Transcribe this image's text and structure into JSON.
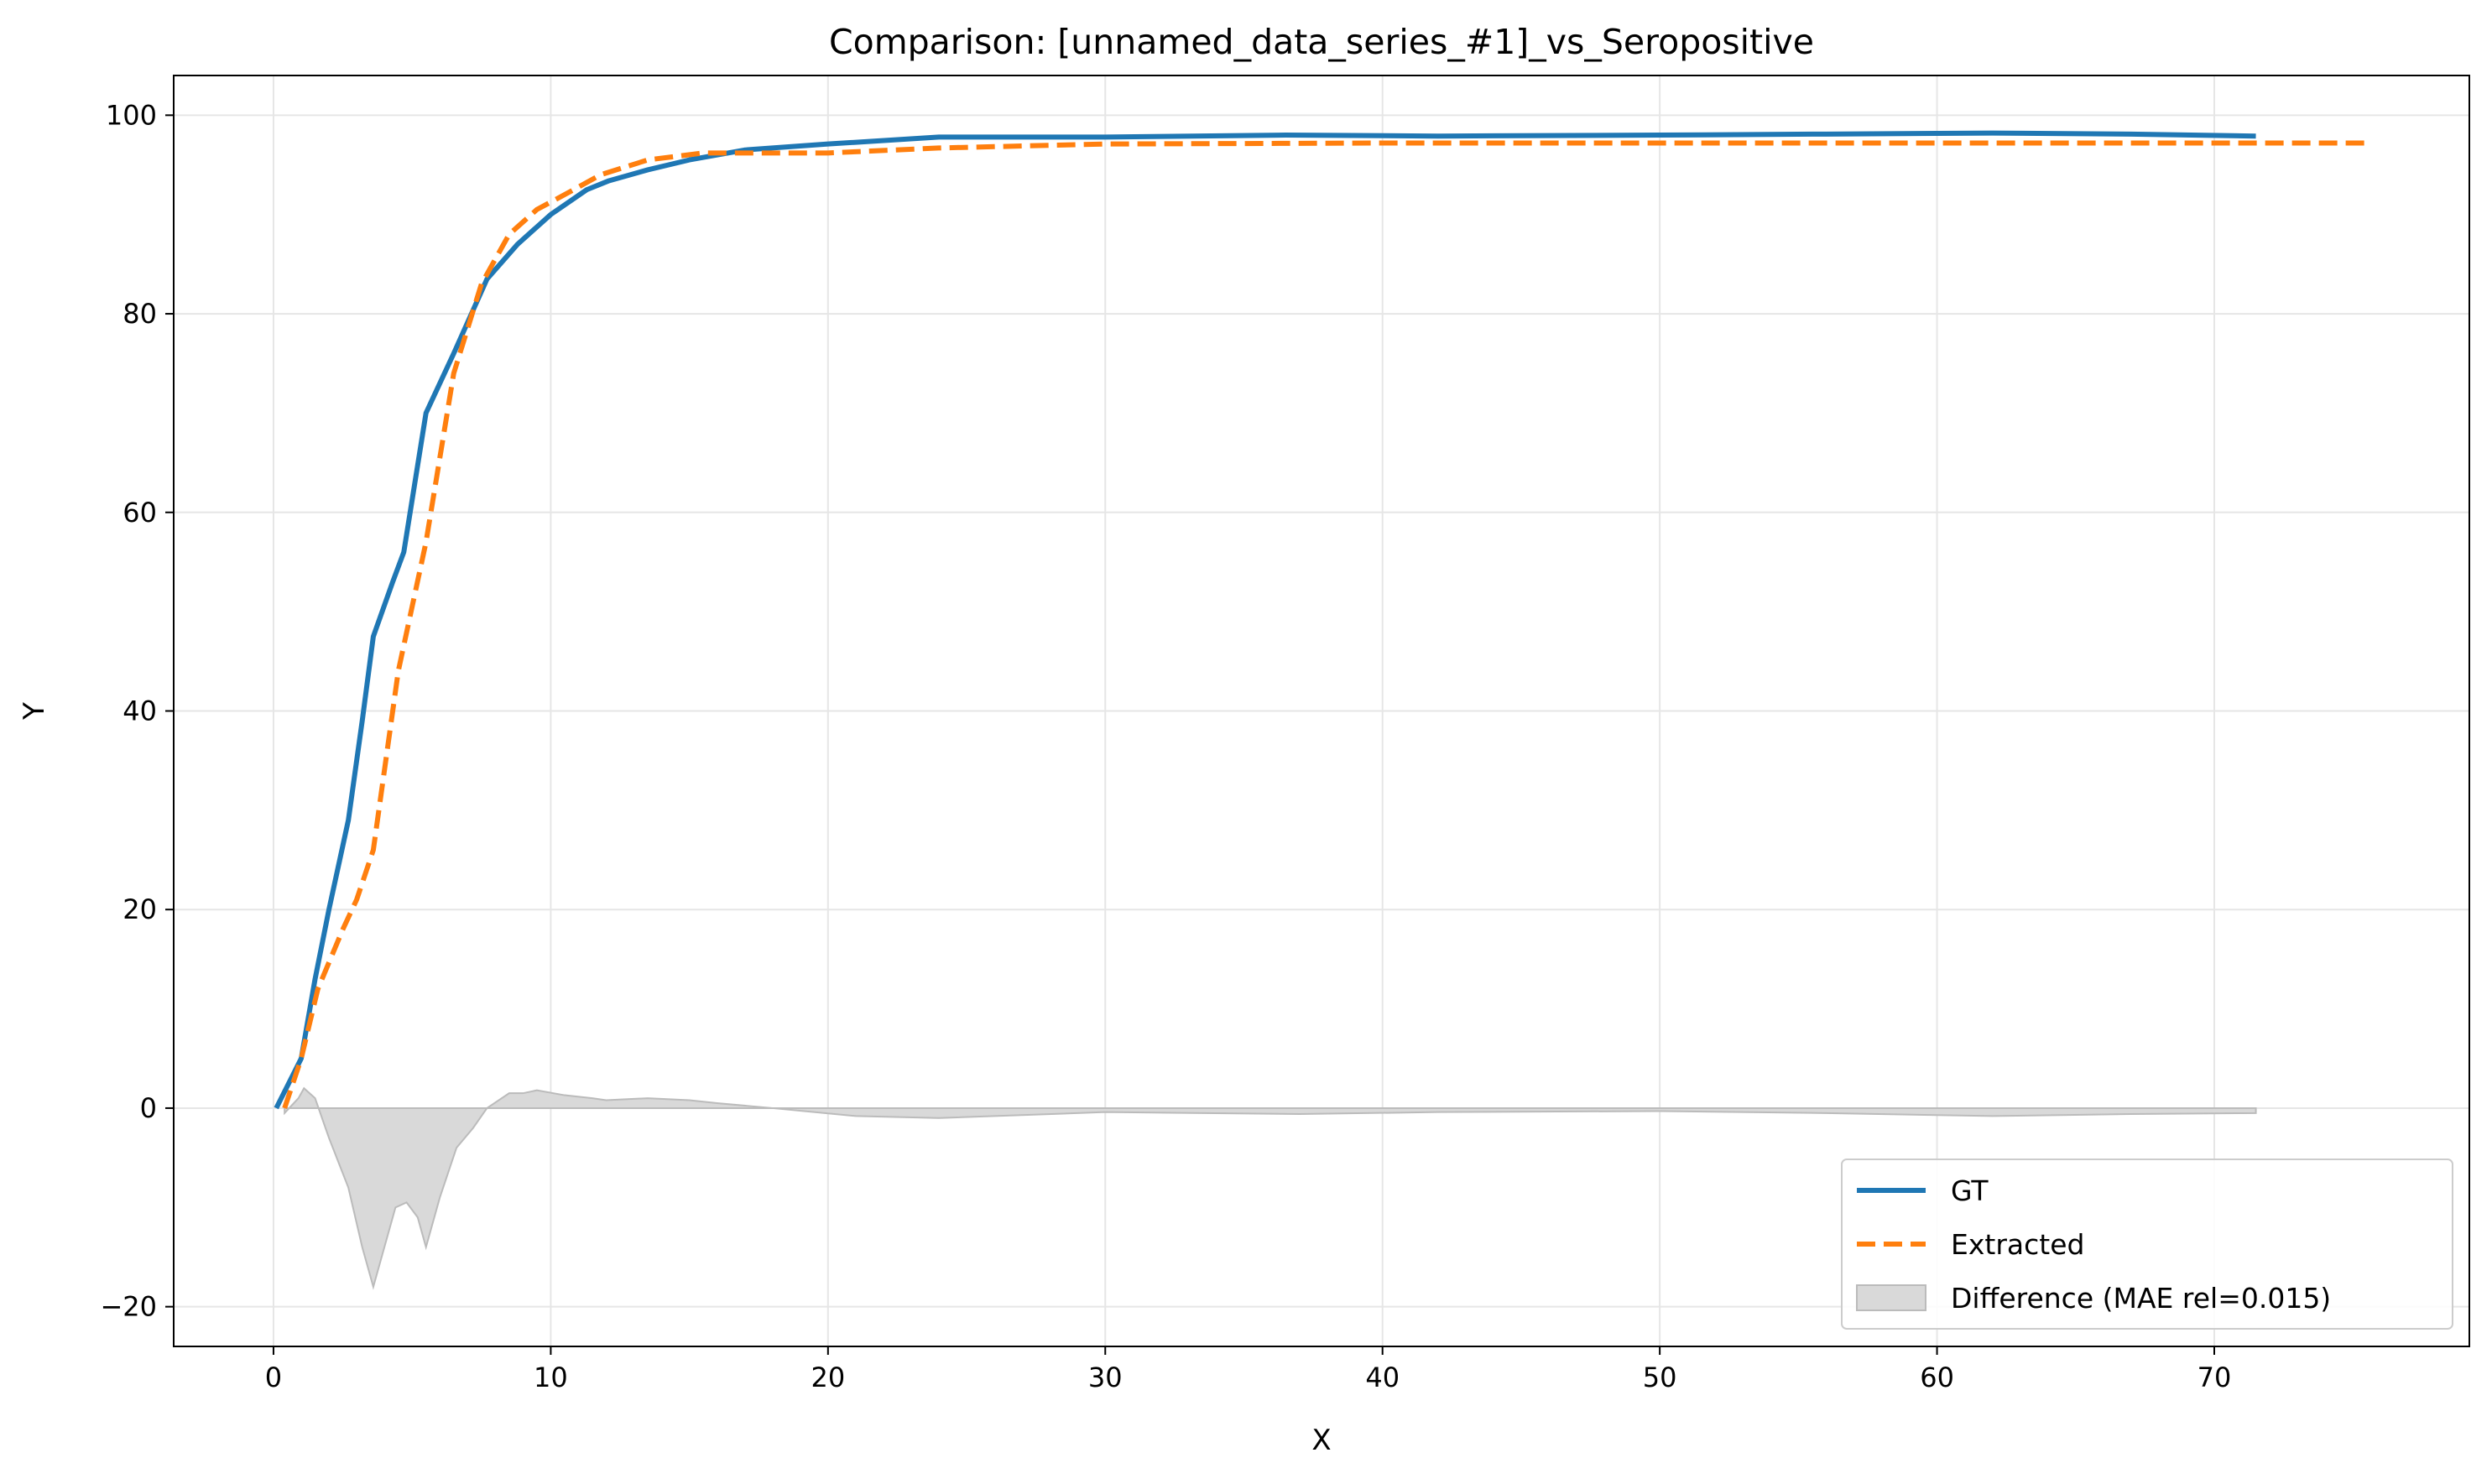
{
  "chart_data": {
    "type": "line",
    "title": "Comparison: [unnamed_data_series_#1]_vs_Seropositive",
    "xlabel": "X",
    "ylabel": "Y",
    "xlim": [
      -3.6,
      79.2
    ],
    "ylim": [
      -24,
      104
    ],
    "xticks": [
      0,
      10,
      20,
      30,
      40,
      50,
      60,
      70
    ],
    "yticks": [
      -20,
      0,
      20,
      40,
      60,
      80,
      100
    ],
    "grid": true,
    "legend_position": "lower-right",
    "series": [
      {
        "name": "GT",
        "color": "#1f77b4",
        "style": "solid",
        "x": [
          0.1,
          1.0,
          1.5,
          2.0,
          2.7,
          3.2,
          3.6,
          4.3,
          4.7,
          5.5,
          6.5,
          7.7,
          8.8,
          10.0,
          11.3,
          12.1,
          13.5,
          15.0,
          17.0,
          20.0,
          24.0,
          30.0,
          36.5,
          42.0,
          50.0,
          56.0,
          62.0,
          67.0,
          71.5
        ],
        "y": [
          0,
          5,
          13,
          20,
          29,
          39,
          47.5,
          53,
          56,
          70,
          76,
          83.5,
          87,
          90,
          92.5,
          93.4,
          94.5,
          95.5,
          96.5,
          97.1,
          97.8,
          97.8,
          98,
          97.9,
          98,
          98.1,
          98.2,
          98.1,
          97.9
        ]
      },
      {
        "name": "Extracted",
        "color": "#ff7f0e",
        "style": "dashed",
        "x": [
          0.4,
          1.0,
          1.6,
          2.5,
          3.0,
          3.6,
          4.5,
          5.5,
          6.5,
          7.5,
          8.5,
          9.5,
          10.5,
          11.8,
          13.5,
          15.5,
          17.0,
          20.0,
          24.0,
          30.0,
          40.0,
          50.0,
          60.0,
          70.0,
          75.5
        ],
        "y": [
          0,
          5,
          12,
          18,
          21,
          26,
          44,
          57,
          74,
          83,
          88,
          90.5,
          92,
          94,
          95.5,
          96.2,
          96.2,
          96.2,
          96.7,
          97.1,
          97.2,
          97.2,
          97.2,
          97.2,
          97.2
        ]
      },
      {
        "name": "Difference (MAE rel=0.015)",
        "color": "#bbbbbb",
        "fill": "#d9d9d9",
        "style": "area",
        "x": [
          0.4,
          0.9,
          1.1,
          1.5,
          2.0,
          2.7,
          3.2,
          3.6,
          3.9,
          4.4,
          4.8,
          5.2,
          5.5,
          6.0,
          6.6,
          7.2,
          7.7,
          8.5,
          9.0,
          9.5,
          10.5,
          11.5,
          12.0,
          13.5,
          15.0,
          16.0,
          18.0,
          21.0,
          24.0,
          30.0,
          37.0,
          42.0,
          50.0,
          56.0,
          62.0,
          67.0,
          71.5
        ],
        "y": [
          -0.5,
          1.0,
          2.0,
          1.0,
          -3.0,
          -8.0,
          -14.0,
          -18.0,
          -15.0,
          -10.0,
          -9.5,
          -11.0,
          -14.0,
          -9.0,
          -4.0,
          -2.0,
          0.0,
          1.5,
          1.5,
          1.8,
          1.3,
          1.0,
          0.8,
          1.0,
          0.8,
          0.5,
          0.0,
          -0.8,
          -1.0,
          -0.4,
          -0.6,
          -0.4,
          -0.3,
          -0.5,
          -0.8,
          -0.6,
          -0.5
        ]
      }
    ]
  }
}
